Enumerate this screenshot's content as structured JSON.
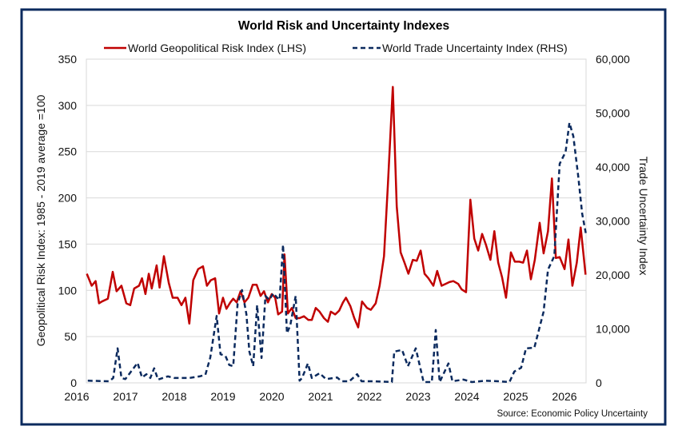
{
  "chart_data": {
    "type": "line",
    "title": "World Risk and Uncertainty Indexes",
    "source": "Source: Economic Policy Uncertainty",
    "legend_position": "top",
    "grid": true,
    "x_ticks": [
      "2016",
      "2017",
      "2018",
      "2019",
      "2020",
      "2021",
      "2022",
      "2023",
      "2024",
      "2025",
      "2026"
    ],
    "xlim": [
      2016.2,
      2026.44
    ],
    "y_left": {
      "label": "Geopolitical Risk Index: 1985 - 2019 average =100",
      "ylim": [
        0,
        350
      ],
      "ticks": [
        "0",
        "50",
        "100",
        "150",
        "200",
        "250",
        "300",
        "350"
      ]
    },
    "y_right": {
      "label": "Trade Uncertainty Index",
      "ylim": [
        0,
        60000
      ],
      "ticks": [
        "0",
        "10,000",
        "20,000",
        "30,000",
        "40,000",
        "50,000",
        "60,000"
      ]
    },
    "series": [
      {
        "name": "World Geopolitical Risk Index (LHS)",
        "axis": "left",
        "color": "#c00000",
        "style": "solid",
        "points": [
          [
            2016.21,
            118
          ],
          [
            2016.31,
            105
          ],
          [
            2016.39,
            110
          ],
          [
            2016.46,
            86
          ],
          [
            2016.52,
            88
          ],
          [
            2016.64,
            91
          ],
          [
            2016.74,
            120
          ],
          [
            2016.82,
            99
          ],
          [
            2016.92,
            105
          ],
          [
            2017.02,
            86
          ],
          [
            2017.1,
            84
          ],
          [
            2017.18,
            102
          ],
          [
            2017.28,
            105
          ],
          [
            2017.34,
            113
          ],
          [
            2017.41,
            96
          ],
          [
            2017.48,
            118
          ],
          [
            2017.54,
            102
          ],
          [
            2017.64,
            127
          ],
          [
            2017.7,
            103
          ],
          [
            2017.79,
            137
          ],
          [
            2017.89,
            108
          ],
          [
            2017.97,
            92
          ],
          [
            2018.07,
            92
          ],
          [
            2018.15,
            84
          ],
          [
            2018.23,
            92
          ],
          [
            2018.31,
            64
          ],
          [
            2018.39,
            111
          ],
          [
            2018.49,
            123
          ],
          [
            2018.59,
            126
          ],
          [
            2018.67,
            105
          ],
          [
            2018.75,
            111
          ],
          [
            2018.84,
            113
          ],
          [
            2018.92,
            75
          ],
          [
            2019.0,
            92
          ],
          [
            2019.07,
            80
          ],
          [
            2019.15,
            87
          ],
          [
            2019.21,
            91
          ],
          [
            2019.28,
            87
          ],
          [
            2019.36,
            99
          ],
          [
            2019.44,
            87
          ],
          [
            2019.52,
            92
          ],
          [
            2019.61,
            106
          ],
          [
            2019.69,
            106
          ],
          [
            2019.77,
            94
          ],
          [
            2019.84,
            99
          ],
          [
            2019.92,
            87
          ],
          [
            2020.0,
            96
          ],
          [
            2020.07,
            92
          ],
          [
            2020.13,
            74
          ],
          [
            2020.21,
            77
          ],
          [
            2020.26,
            139
          ],
          [
            2020.33,
            75
          ],
          [
            2020.41,
            81
          ],
          [
            2020.49,
            70
          ],
          [
            2020.57,
            70
          ],
          [
            2020.66,
            72
          ],
          [
            2020.75,
            68
          ],
          [
            2020.82,
            68
          ],
          [
            2020.9,
            81
          ],
          [
            2020.98,
            77
          ],
          [
            2021.07,
            70
          ],
          [
            2021.15,
            66
          ],
          [
            2021.21,
            77
          ],
          [
            2021.3,
            74
          ],
          [
            2021.38,
            78
          ],
          [
            2021.46,
            87
          ],
          [
            2021.52,
            92
          ],
          [
            2021.61,
            83
          ],
          [
            2021.69,
            70
          ],
          [
            2021.77,
            60
          ],
          [
            2021.85,
            88
          ],
          [
            2021.95,
            81
          ],
          [
            2022.03,
            79
          ],
          [
            2022.13,
            86
          ],
          [
            2022.21,
            105
          ],
          [
            2022.3,
            137
          ],
          [
            2022.38,
            215
          ],
          [
            2022.48,
            320
          ],
          [
            2022.56,
            191
          ],
          [
            2022.64,
            141
          ],
          [
            2022.72,
            130
          ],
          [
            2022.8,
            118
          ],
          [
            2022.89,
            133
          ],
          [
            2022.97,
            132
          ],
          [
            2023.05,
            143
          ],
          [
            2023.13,
            118
          ],
          [
            2023.21,
            113
          ],
          [
            2023.31,
            105
          ],
          [
            2023.39,
            121
          ],
          [
            2023.48,
            105
          ],
          [
            2023.56,
            107
          ],
          [
            2023.64,
            109
          ],
          [
            2023.72,
            110
          ],
          [
            2023.82,
            107
          ],
          [
            2023.89,
            101
          ],
          [
            2023.98,
            98
          ],
          [
            2024.07,
            198
          ],
          [
            2024.15,
            156
          ],
          [
            2024.23,
            143
          ],
          [
            2024.31,
            161
          ],
          [
            2024.39,
            149
          ],
          [
            2024.48,
            133
          ],
          [
            2024.56,
            164
          ],
          [
            2024.64,
            130
          ],
          [
            2024.72,
            114
          ],
          [
            2024.8,
            92
          ],
          [
            2024.9,
            141
          ],
          [
            2024.98,
            131
          ],
          [
            2025.07,
            131
          ],
          [
            2025.15,
            130
          ],
          [
            2025.23,
            143
          ],
          [
            2025.31,
            112
          ],
          [
            2025.39,
            133
          ],
          [
            2025.49,
            173
          ],
          [
            2025.57,
            140
          ],
          [
            2025.66,
            164
          ],
          [
            2025.74,
            221
          ],
          [
            2025.82,
            135
          ],
          [
            2025.9,
            136
          ],
          [
            2026.0,
            123
          ],
          [
            2026.08,
            155
          ],
          [
            2026.16,
            105
          ],
          [
            2026.25,
            130
          ],
          [
            2026.33,
            168
          ],
          [
            2026.43,
            117
          ]
        ]
      },
      {
        "name": "World Trade Uncertainty Index (RHS)",
        "axis": "right",
        "color": "#0b2a5e",
        "style": "dashed",
        "points": [
          [
            2016.23,
            400
          ],
          [
            2016.67,
            300
          ],
          [
            2016.75,
            900
          ],
          [
            2016.84,
            6400
          ],
          [
            2016.92,
            900
          ],
          [
            2017.0,
            700
          ],
          [
            2017.25,
            3700
          ],
          [
            2017.34,
            1000
          ],
          [
            2017.43,
            1600
          ],
          [
            2017.51,
            900
          ],
          [
            2017.59,
            2700
          ],
          [
            2017.67,
            600
          ],
          [
            2017.87,
            1200
          ],
          [
            2018.0,
            900
          ],
          [
            2018.31,
            900
          ],
          [
            2018.52,
            1200
          ],
          [
            2018.64,
            1500
          ],
          [
            2018.74,
            4700
          ],
          [
            2018.87,
            12400
          ],
          [
            2018.95,
            5300
          ],
          [
            2019.05,
            5000
          ],
          [
            2019.13,
            3300
          ],
          [
            2019.21,
            3100
          ],
          [
            2019.3,
            14700
          ],
          [
            2019.39,
            17200
          ],
          [
            2019.48,
            12700
          ],
          [
            2019.54,
            5800
          ],
          [
            2019.62,
            3100
          ],
          [
            2019.7,
            14400
          ],
          [
            2019.79,
            4600
          ],
          [
            2019.87,
            16100
          ],
          [
            2019.95,
            15400
          ],
          [
            2020.03,
            16600
          ],
          [
            2020.11,
            15800
          ],
          [
            2020.16,
            15400
          ],
          [
            2020.23,
            25600
          ],
          [
            2020.31,
            9200
          ],
          [
            2020.38,
            10700
          ],
          [
            2020.49,
            16100
          ],
          [
            2020.57,
            400
          ],
          [
            2020.62,
            900
          ],
          [
            2020.74,
            3600
          ],
          [
            2020.82,
            900
          ],
          [
            2020.98,
            1800
          ],
          [
            2021.11,
            700
          ],
          [
            2021.34,
            1000
          ],
          [
            2021.43,
            300
          ],
          [
            2021.59,
            300
          ],
          [
            2021.75,
            1600
          ],
          [
            2021.84,
            300
          ],
          [
            2022.1,
            300
          ],
          [
            2022.46,
            150
          ],
          [
            2022.51,
            5800
          ],
          [
            2022.67,
            6100
          ],
          [
            2022.79,
            3100
          ],
          [
            2022.95,
            6400
          ],
          [
            2023.11,
            150
          ],
          [
            2023.28,
            150
          ],
          [
            2023.36,
            9800
          ],
          [
            2023.44,
            150
          ],
          [
            2023.62,
            3600
          ],
          [
            2023.7,
            300
          ],
          [
            2023.93,
            600
          ],
          [
            2024.1,
            150
          ],
          [
            2024.38,
            400
          ],
          [
            2024.64,
            300
          ],
          [
            2024.87,
            150
          ],
          [
            2024.97,
            2100
          ],
          [
            2025.11,
            2800
          ],
          [
            2025.21,
            6400
          ],
          [
            2025.38,
            6500
          ],
          [
            2025.57,
            13200
          ],
          [
            2025.66,
            21000
          ],
          [
            2025.79,
            23500
          ],
          [
            2025.9,
            40600
          ],
          [
            2026.02,
            42800
          ],
          [
            2026.1,
            48200
          ],
          [
            2026.18,
            45700
          ],
          [
            2026.28,
            38300
          ],
          [
            2026.36,
            31400
          ],
          [
            2026.44,
            27500
          ]
        ]
      }
    ]
  }
}
